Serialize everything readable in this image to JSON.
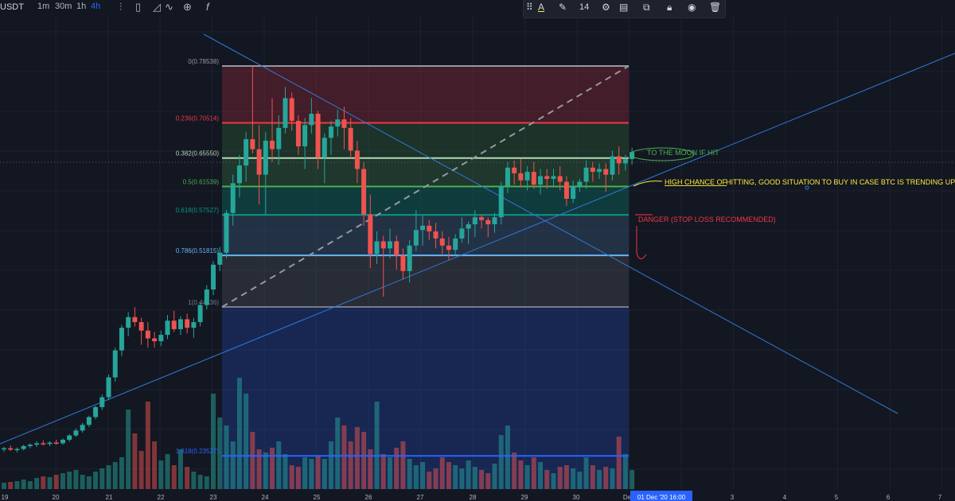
{
  "toolbar": {
    "symbol_fragment": "USDT",
    "timeframes": [
      "1m",
      "30m",
      "1h",
      "4h"
    ],
    "active_timeframe": "4h",
    "font_size": "14",
    "icons": [
      "bar-type-icon",
      "candles-icon",
      "area-icon",
      "indicators-icon",
      "add-icon",
      "fx-icon"
    ],
    "draw_icons": [
      "drag-handle-icon",
      "text-color-icon",
      "pencil-icon",
      "settings-icon",
      "fill-icon",
      "copy-icon",
      "lock-icon",
      "eye-icon",
      "trash-icon"
    ],
    "text_color_glyph": "A",
    "accent": "#2962ff"
  },
  "chart_data": {
    "type": "candlestick",
    "ylim": [
      0.18,
      0.88
    ],
    "colors": {
      "up": "#26a69a",
      "down": "#ef5350",
      "bg": "#131722",
      "grid": "#1e222d",
      "trend": "#2f7ad7"
    },
    "x_ticks": [
      "19",
      "20",
      "21",
      "22",
      "23",
      "24",
      "25",
      "26",
      "27",
      "28",
      "29",
      "30",
      "Dec",
      "3",
      "4",
      "5",
      "6",
      "7"
    ],
    "crosshair_label": "01 Dec '20   16:00",
    "candles": [
      [
        0.245,
        0.248,
        0.241,
        0.246
      ],
      [
        0.246,
        0.25,
        0.242,
        0.244
      ],
      [
        0.244,
        0.247,
        0.24,
        0.245
      ],
      [
        0.245,
        0.251,
        0.243,
        0.249
      ],
      [
        0.249,
        0.253,
        0.246,
        0.251
      ],
      [
        0.251,
        0.256,
        0.248,
        0.253
      ],
      [
        0.253,
        0.257,
        0.25,
        0.252
      ],
      [
        0.252,
        0.256,
        0.249,
        0.254
      ],
      [
        0.254,
        0.258,
        0.251,
        0.253
      ],
      [
        0.253,
        0.26,
        0.251,
        0.258
      ],
      [
        0.258,
        0.266,
        0.255,
        0.264
      ],
      [
        0.264,
        0.274,
        0.262,
        0.271
      ],
      [
        0.271,
        0.282,
        0.268,
        0.279
      ],
      [
        0.279,
        0.292,
        0.276,
        0.29
      ],
      [
        0.29,
        0.306,
        0.287,
        0.304
      ],
      [
        0.304,
        0.322,
        0.3,
        0.318
      ],
      [
        0.318,
        0.35,
        0.314,
        0.346
      ],
      [
        0.346,
        0.388,
        0.34,
        0.384
      ],
      [
        0.384,
        0.42,
        0.376,
        0.416
      ],
      [
        0.416,
        0.438,
        0.404,
        0.431
      ],
      [
        0.431,
        0.445,
        0.418,
        0.424
      ],
      [
        0.424,
        0.43,
        0.392,
        0.412
      ],
      [
        0.412,
        0.424,
        0.388,
        0.401
      ],
      [
        0.401,
        0.41,
        0.388,
        0.397
      ],
      [
        0.397,
        0.412,
        0.39,
        0.406
      ],
      [
        0.406,
        0.434,
        0.4,
        0.426
      ],
      [
        0.426,
        0.44,
        0.41,
        0.414
      ],
      [
        0.414,
        0.432,
        0.406,
        0.428
      ],
      [
        0.428,
        0.436,
        0.408,
        0.416
      ],
      [
        0.416,
        0.43,
        0.402,
        0.424
      ],
      [
        0.424,
        0.452,
        0.418,
        0.448
      ],
      [
        0.448,
        0.476,
        0.442,
        0.47
      ],
      [
        0.47,
        0.51,
        0.462,
        0.505
      ],
      [
        0.505,
        0.53,
        0.496,
        0.522
      ],
      [
        0.522,
        0.582,
        0.514,
        0.578
      ],
      [
        0.578,
        0.632,
        0.56,
        0.62
      ],
      [
        0.62,
        0.66,
        0.6,
        0.645
      ],
      [
        0.645,
        0.692,
        0.622,
        0.682
      ],
      [
        0.682,
        0.785,
        0.662,
        0.668
      ],
      [
        0.668,
        0.702,
        0.59,
        0.632
      ],
      [
        0.632,
        0.692,
        0.576,
        0.68
      ],
      [
        0.68,
        0.74,
        0.65,
        0.668
      ],
      [
        0.668,
        0.716,
        0.646,
        0.698
      ],
      [
        0.698,
        0.756,
        0.69,
        0.74
      ],
      [
        0.74,
        0.748,
        0.694,
        0.708
      ],
      [
        0.708,
        0.716,
        0.66,
        0.672
      ],
      [
        0.672,
        0.712,
        0.64,
        0.702
      ],
      [
        0.702,
        0.74,
        0.69,
        0.718
      ],
      [
        0.718,
        0.722,
        0.64,
        0.656
      ],
      [
        0.656,
        0.69,
        0.62,
        0.684
      ],
      [
        0.684,
        0.708,
        0.66,
        0.7
      ],
      [
        0.7,
        0.724,
        0.686,
        0.71
      ],
      [
        0.71,
        0.728,
        0.668,
        0.698
      ],
      [
        0.698,
        0.712,
        0.655,
        0.666
      ],
      [
        0.666,
        0.68,
        0.62,
        0.64
      ],
      [
        0.64,
        0.65,
        0.56,
        0.576
      ],
      [
        0.576,
        0.604,
        0.5,
        0.52
      ],
      [
        0.52,
        0.552,
        0.506,
        0.538
      ],
      [
        0.538,
        0.546,
        0.46,
        0.528
      ],
      [
        0.528,
        0.556,
        0.514,
        0.538
      ],
      [
        0.538,
        0.546,
        0.498,
        0.518
      ],
      [
        0.518,
        0.528,
        0.484,
        0.496
      ],
      [
        0.496,
        0.54,
        0.48,
        0.532
      ],
      [
        0.532,
        0.582,
        0.524,
        0.554
      ],
      [
        0.554,
        0.574,
        0.532,
        0.56
      ],
      [
        0.56,
        0.568,
        0.54,
        0.552
      ],
      [
        0.552,
        0.564,
        0.528,
        0.542
      ],
      [
        0.542,
        0.552,
        0.52,
        0.532
      ],
      [
        0.532,
        0.544,
        0.512,
        0.526
      ],
      [
        0.526,
        0.548,
        0.518,
        0.542
      ],
      [
        0.542,
        0.572,
        0.536,
        0.556
      ],
      [
        0.556,
        0.566,
        0.534,
        0.562
      ],
      [
        0.562,
        0.582,
        0.544,
        0.572
      ],
      [
        0.572,
        0.576,
        0.556,
        0.568
      ],
      [
        0.568,
        0.572,
        0.544,
        0.562
      ],
      [
        0.562,
        0.578,
        0.55,
        0.572
      ],
      [
        0.572,
        0.622,
        0.562,
        0.616
      ],
      [
        0.616,
        0.65,
        0.606,
        0.642
      ],
      [
        0.642,
        0.652,
        0.618,
        0.634
      ],
      [
        0.634,
        0.654,
        0.614,
        0.624
      ],
      [
        0.624,
        0.644,
        0.61,
        0.636
      ],
      [
        0.636,
        0.65,
        0.612,
        0.618
      ],
      [
        0.618,
        0.64,
        0.604,
        0.63
      ],
      [
        0.63,
        0.64,
        0.612,
        0.626
      ],
      [
        0.626,
        0.64,
        0.614,
        0.63
      ],
      [
        0.63,
        0.644,
        0.61,
        0.622
      ],
      [
        0.622,
        0.63,
        0.588,
        0.598
      ],
      [
        0.598,
        0.624,
        0.592,
        0.616
      ],
      [
        0.616,
        0.626,
        0.608,
        0.622
      ],
      [
        0.622,
        0.652,
        0.612,
        0.642
      ],
      [
        0.642,
        0.65,
        0.622,
        0.636
      ],
      [
        0.636,
        0.648,
        0.626,
        0.64
      ],
      [
        0.64,
        0.648,
        0.608,
        0.632
      ],
      [
        0.632,
        0.666,
        0.624,
        0.658
      ],
      [
        0.658,
        0.672,
        0.632,
        0.648
      ],
      [
        0.648,
        0.66,
        0.638,
        0.654
      ],
      [
        0.654,
        0.67,
        0.646,
        0.664
      ]
    ],
    "fib": {
      "levels": [
        {
          "label": "0(0.78538)",
          "value": 0.78538,
          "color": "#9598a1",
          "fill": "rgba(242,54,69,0.22)"
        },
        {
          "label": "0.236(0.70514)",
          "value": 0.70514,
          "color": "#f23645",
          "fill": "rgba(76,175,80,0.18)"
        },
        {
          "label": "0.382(0.65550)",
          "value": 0.6555,
          "color": "#b2d8b4",
          "fill": "rgba(76,175,80,0.22)"
        },
        {
          "label": "0.5(0.61539)",
          "value": 0.61539,
          "color": "#4caf50",
          "fill": "rgba(8,153,129,0.28)"
        },
        {
          "label": "0.618(0.57527)",
          "value": 0.57527,
          "color": "#089981",
          "fill": "rgba(80,120,160,0.28)"
        },
        {
          "label": "0.786(0.51815)",
          "value": 0.51815,
          "color": "#64b5f6",
          "fill": "rgba(120,123,134,0.22)"
        },
        {
          "label": "1(0.44536)",
          "value": 0.44536,
          "color": "#787b86",
          "fill": "rgba(41,98,255,0.22)"
        },
        {
          "label": "1.618(0.23527)",
          "value": 0.23527,
          "color": "#2962ff",
          "fill": ""
        }
      ]
    },
    "annotations": [
      {
        "text": "TO THE MOON IF HIT",
        "color": "#4caf50"
      },
      {
        "text_highlight": "HIGH CHANCE OF",
        "text_rest": "HITTING, GOOD SITUATION TO BUY IN CASE BTC IS TRENDING UP",
        "color_highlight": "#ffeb3b",
        "color_rest": "#ffeb3b"
      },
      {
        "text": "DANGER (STOP LOSS RECOMMENDED)",
        "color": "#f23645"
      }
    ]
  }
}
